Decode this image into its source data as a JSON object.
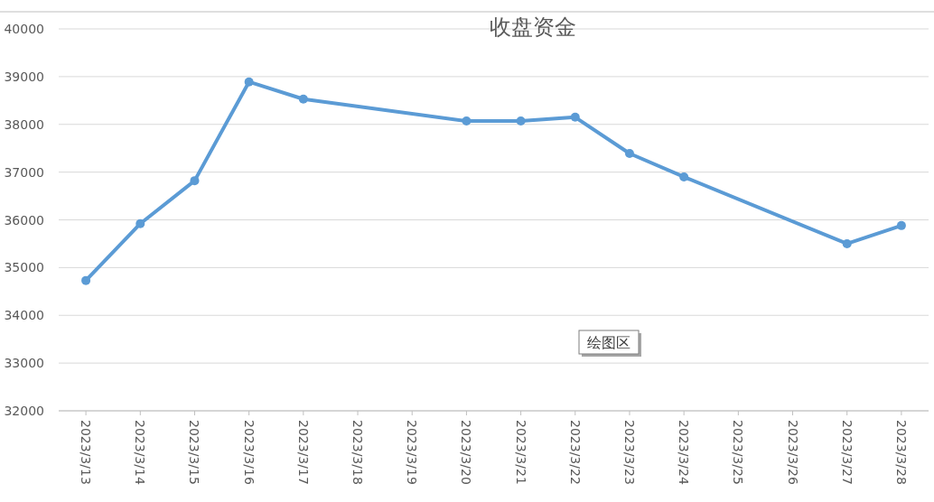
{
  "chart_data": {
    "type": "line",
    "title": "收盘资金",
    "x": [
      "2023-03-13",
      "2023-03-14",
      "2023-03-15",
      "2023-03-16",
      "2023-03-17",
      "2023-03-20",
      "2023-03-21",
      "2023-03-22",
      "2023-03-23",
      "2023-03-24",
      "2023-03-27",
      "2023-03-28"
    ],
    "series": [
      {
        "color": "#5b9bd5",
        "values": [
          34730,
          35920,
          36820,
          38890,
          38530,
          38070,
          38070,
          38150,
          37390,
          36900,
          35500,
          35880
        ]
      }
    ],
    "xlim": [
      "2023-03-12T12:00",
      "2023-03-28T12:00"
    ],
    "xticks": [
      {
        "value": "2023-03-13",
        "label": "2023/3/13"
      },
      {
        "value": "2023-03-14",
        "label": "2023/3/14"
      },
      {
        "value": "2023-03-15",
        "label": "2023/3/15"
      },
      {
        "value": "2023-03-16",
        "label": "2023/3/16"
      },
      {
        "value": "2023-03-17",
        "label": "2023/3/17"
      },
      {
        "value": "2023-03-18",
        "label": "2023/3/18"
      },
      {
        "value": "2023-03-19",
        "label": "2023/3/19"
      },
      {
        "value": "2023-03-20",
        "label": "2023/3/20"
      },
      {
        "value": "2023-03-21",
        "label": "2023/3/21"
      },
      {
        "value": "2023-03-22",
        "label": "2023/3/22"
      },
      {
        "value": "2023-03-23",
        "label": "2023/3/23"
      },
      {
        "value": "2023-03-24",
        "label": "2023/3/24"
      },
      {
        "value": "2023-03-25",
        "label": "2023/3/25"
      },
      {
        "value": "2023-03-26",
        "label": "2023/3/26"
      },
      {
        "value": "2023-03-27",
        "label": "2023/3/27"
      },
      {
        "value": "2023-03-28",
        "label": "2023/3/28"
      }
    ],
    "ylim": [
      32000,
      40000
    ],
    "yticks": [
      32000,
      33000,
      34000,
      35000,
      36000,
      37000,
      38000,
      39000,
      40000
    ],
    "grid": "y",
    "marker": "circle",
    "line_style": "solid",
    "annotations": [
      "绘图区"
    ]
  }
}
